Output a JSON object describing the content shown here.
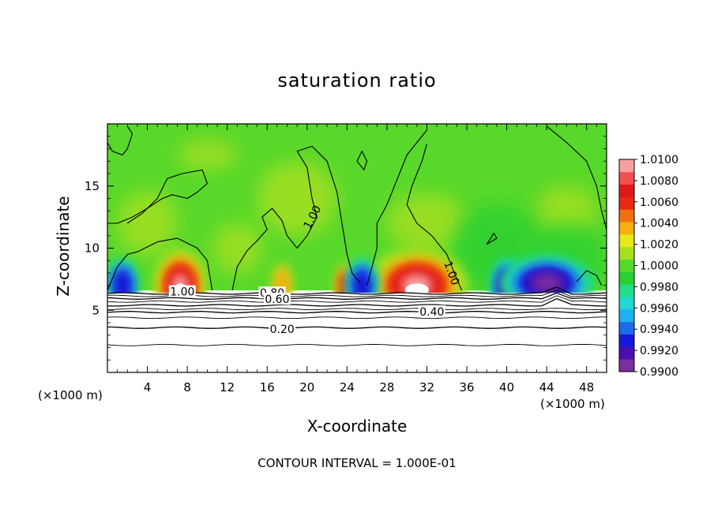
{
  "chart_data": {
    "type": "heatmap",
    "title": "saturation ratio",
    "xlabel": "X-coordinate",
    "ylabel": "Z-coordinate",
    "x_unit_left": "(×1000 m)",
    "x_unit_right": "(×1000 m)",
    "footer": "CONTOUR INTERVAL = 1.000E-01",
    "xlim": [
      0,
      50
    ],
    "ylim": [
      0,
      20
    ],
    "x_ticks": [
      4,
      8,
      12,
      16,
      20,
      24,
      28,
      32,
      36,
      40,
      44,
      48
    ],
    "y_ticks": [
      5,
      10,
      15
    ],
    "contour_labels": [
      {
        "text": "1.00",
        "x": 7.5,
        "z": 6.5
      },
      {
        "text": "0.80",
        "x": 16.5,
        "z": 6.4
      },
      {
        "text": "0.60",
        "x": 17.0,
        "z": 5.9
      },
      {
        "text": "0.40",
        "x": 32.5,
        "z": 4.9
      },
      {
        "text": "0.20",
        "x": 17.5,
        "z": 3.5
      },
      {
        "text": "1.00",
        "x": 20.5,
        "z": 12.5
      },
      {
        "text": "1.00",
        "x": 34.5,
        "z": 8.0
      }
    ],
    "subsaturated_contour_levels_z": [
      6.35,
      6.15,
      5.95,
      5.7,
      5.4,
      5.1,
      4.85,
      4.4,
      3.6,
      2.2
    ],
    "colorbar": {
      "min": 0.99,
      "max": 1.01,
      "tick_labels": [
        "1.0100",
        "1.0080",
        "1.0060",
        "1.0040",
        "1.0020",
        "1.0000",
        "0.9980",
        "0.9960",
        "0.9940",
        "0.9920",
        "0.9900"
      ],
      "colors": [
        "#7a2fa0",
        "#4b0fb0",
        "#1818d8",
        "#1c6be8",
        "#1eb0f0",
        "#22d8d0",
        "#22dd88",
        "#2ad030",
        "#58d82a",
        "#a8e020",
        "#e8e818",
        "#f4b010",
        "#f07010",
        "#e82a10",
        "#e01818",
        "#f05050",
        "#f8a0a0"
      ]
    },
    "features": [
      {
        "kind": "supersaturated",
        "x": 7.3,
        "z": 7.0,
        "max": 1.01
      },
      {
        "kind": "supersaturated",
        "x": 31.0,
        "z": 7.0,
        "max": 1.01
      },
      {
        "kind": "supersaturated",
        "x": 23.8,
        "z": 7.0,
        "max": 1.006
      },
      {
        "kind": "supersaturated",
        "x": 17.5,
        "z": 7.0,
        "max": 1.004
      },
      {
        "kind": "subsaturated",
        "x": 1.5,
        "z": 7.0,
        "min": 0.994
      },
      {
        "kind": "subsaturated",
        "x": 25.5,
        "z": 7.0,
        "min": 0.994
      },
      {
        "kind": "subsaturated",
        "x": 40.0,
        "z": 7.0,
        "min": 0.992
      },
      {
        "kind": "subsaturated",
        "x": 44.0,
        "z": 7.2,
        "min": 0.991
      }
    ]
  }
}
